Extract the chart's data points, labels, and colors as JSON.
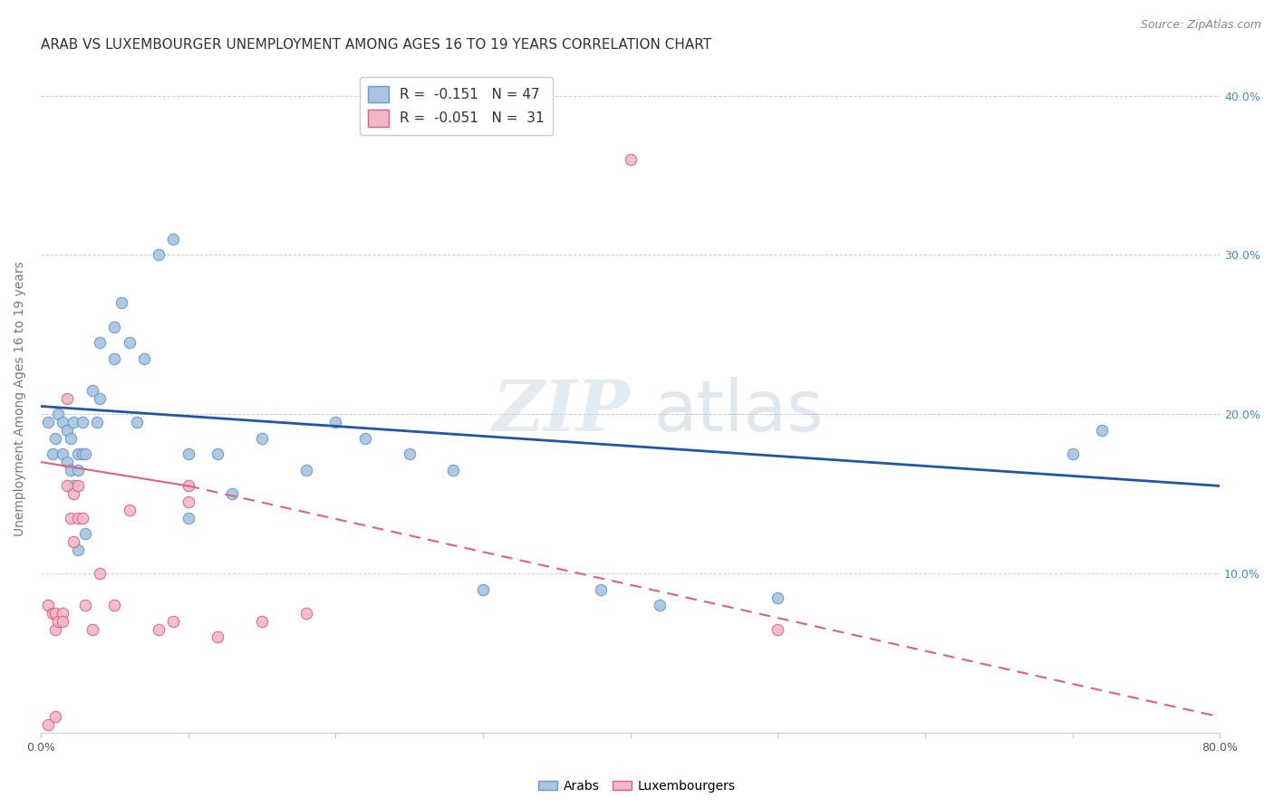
{
  "title": "ARAB VS LUXEMBOURGER UNEMPLOYMENT AMONG AGES 16 TO 19 YEARS CORRELATION CHART",
  "source": "Source: ZipAtlas.com",
  "ylabel": "Unemployment Among Ages 16 to 19 years",
  "xlim": [
    0.0,
    0.8
  ],
  "ylim": [
    0.0,
    0.42
  ],
  "xticks": [
    0.0,
    0.1,
    0.2,
    0.3,
    0.4,
    0.5,
    0.6,
    0.7,
    0.8
  ],
  "xticklabels": [
    "0.0%",
    "",
    "",
    "",
    "",
    "",
    "",
    "",
    "80.0%"
  ],
  "yticks_right": [
    0.0,
    0.1,
    0.2,
    0.3,
    0.4
  ],
  "yticklabels_right": [
    "",
    "10.0%",
    "20.0%",
    "30.0%",
    "40.0%"
  ],
  "legend_arab_r": "-0.151",
  "legend_arab_n": "47",
  "legend_lux_r": "-0.051",
  "legend_lux_n": "31",
  "arab_color": "#a8c4e0",
  "arab_edge_color": "#6699cc",
  "lux_color": "#f0b8c8",
  "lux_edge_color": "#e06080",
  "arab_line_color": "#2255aa",
  "lux_line_color": "#e06080",
  "background_color": "#ffffff",
  "grid_color": "#cccccc",
  "title_color": "#333333",
  "title_fontsize": 11,
  "axis_label_fontsize": 10,
  "tick_fontsize": 9,
  "marker_size": 80,
  "arab_line": [
    0.0,
    0.205,
    0.8,
    0.155
  ],
  "lux_line_solid": [
    0.0,
    0.17,
    0.1,
    0.155
  ],
  "lux_line_dash": [
    0.1,
    0.155,
    0.8,
    0.01
  ],
  "arab_x": [
    0.005,
    0.008,
    0.01,
    0.012,
    0.015,
    0.015,
    0.018,
    0.018,
    0.02,
    0.02,
    0.022,
    0.022,
    0.025,
    0.025,
    0.025,
    0.028,
    0.028,
    0.03,
    0.03,
    0.035,
    0.038,
    0.04,
    0.04,
    0.05,
    0.05,
    0.055,
    0.06,
    0.065,
    0.07,
    0.08,
    0.09,
    0.1,
    0.1,
    0.12,
    0.13,
    0.15,
    0.18,
    0.2,
    0.22,
    0.25,
    0.28,
    0.3,
    0.38,
    0.42,
    0.5,
    0.7,
    0.72
  ],
  "arab_y": [
    0.195,
    0.175,
    0.185,
    0.2,
    0.195,
    0.175,
    0.19,
    0.17,
    0.185,
    0.165,
    0.195,
    0.155,
    0.175,
    0.165,
    0.115,
    0.175,
    0.195,
    0.175,
    0.125,
    0.215,
    0.195,
    0.245,
    0.21,
    0.255,
    0.235,
    0.27,
    0.245,
    0.195,
    0.235,
    0.3,
    0.31,
    0.175,
    0.135,
    0.175,
    0.15,
    0.185,
    0.165,
    0.195,
    0.185,
    0.175,
    0.165,
    0.09,
    0.09,
    0.08,
    0.085,
    0.175,
    0.19
  ],
  "lux_x": [
    0.005,
    0.005,
    0.008,
    0.01,
    0.01,
    0.01,
    0.012,
    0.015,
    0.015,
    0.018,
    0.018,
    0.02,
    0.022,
    0.022,
    0.025,
    0.025,
    0.028,
    0.03,
    0.035,
    0.04,
    0.05,
    0.06,
    0.08,
    0.09,
    0.1,
    0.1,
    0.12,
    0.15,
    0.18,
    0.4,
    0.5
  ],
  "lux_y": [
    0.005,
    0.08,
    0.075,
    0.075,
    0.065,
    0.01,
    0.07,
    0.075,
    0.07,
    0.21,
    0.155,
    0.135,
    0.15,
    0.12,
    0.155,
    0.135,
    0.135,
    0.08,
    0.065,
    0.1,
    0.08,
    0.14,
    0.065,
    0.07,
    0.155,
    0.145,
    0.06,
    0.07,
    0.075,
    0.36,
    0.065
  ]
}
